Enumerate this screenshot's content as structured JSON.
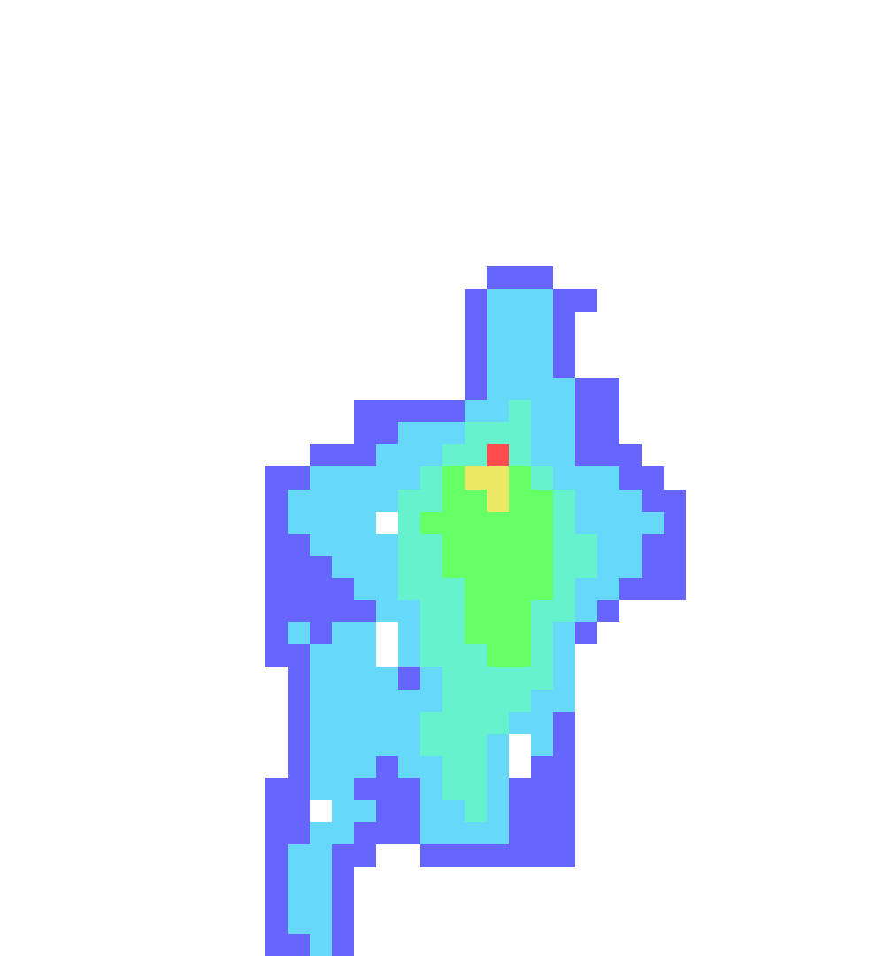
{
  "chart_data": {
    "type": "heatmap",
    "tick_labels": false,
    "levels": [
      1,
      2,
      3,
      4,
      5,
      6
    ],
    "colors": [
      "#6666ff",
      "#66d9fa",
      "#66f2cc",
      "#66ff66",
      "#ece866",
      "#ff4d4d"
    ],
    "cells": [
      [
        0,
        0,
        0,
        0,
        0,
        0,
        0,
        0,
        0,
        0,
        0,
        0,
        0,
        0,
        0,
        0,
        0,
        0,
        0,
        0,
        0,
        0,
        0,
        0,
        0,
        0,
        0,
        0,
        0,
        0,
        0,
        0,
        0,
        0,
        0,
        0,
        0,
        0,
        0,
        0
      ],
      [
        0,
        0,
        0,
        0,
        0,
        0,
        0,
        0,
        0,
        0,
        0,
        0,
        0,
        0,
        0,
        0,
        0,
        0,
        0,
        0,
        0,
        0,
        0,
        0,
        0,
        0,
        0,
        0,
        0,
        0,
        0,
        0,
        0,
        0,
        0,
        0,
        0,
        0,
        0,
        0
      ],
      [
        0,
        0,
        0,
        0,
        0,
        0,
        0,
        0,
        0,
        0,
        0,
        0,
        0,
        0,
        0,
        0,
        0,
        0,
        0,
        0,
        0,
        0,
        0,
        0,
        0,
        0,
        0,
        0,
        0,
        0,
        0,
        0,
        0,
        0,
        0,
        0,
        0,
        0,
        0,
        0
      ],
      [
        0,
        0,
        0,
        0,
        0,
        0,
        0,
        0,
        0,
        0,
        0,
        0,
        0,
        0,
        0,
        0,
        0,
        0,
        0,
        0,
        0,
        0,
        0,
        0,
        0,
        0,
        0,
        0,
        0,
        0,
        0,
        0,
        0,
        0,
        0,
        0,
        0,
        0,
        0,
        0
      ],
      [
        0,
        0,
        0,
        0,
        0,
        0,
        0,
        0,
        0,
        0,
        0,
        0,
        0,
        0,
        0,
        0,
        0,
        0,
        0,
        0,
        0,
        0,
        0,
        0,
        0,
        0,
        0,
        0,
        0,
        0,
        0,
        0,
        0,
        0,
        0,
        0,
        0,
        0,
        0,
        0
      ],
      [
        0,
        0,
        0,
        0,
        0,
        0,
        0,
        0,
        0,
        0,
        0,
        0,
        0,
        0,
        0,
        0,
        0,
        0,
        0,
        0,
        0,
        0,
        0,
        0,
        0,
        0,
        0,
        0,
        0,
        0,
        0,
        0,
        0,
        0,
        0,
        0,
        0,
        0,
        0,
        0
      ],
      [
        0,
        0,
        0,
        0,
        0,
        0,
        0,
        0,
        0,
        0,
        0,
        0,
        0,
        0,
        0,
        0,
        0,
        0,
        0,
        0,
        0,
        0,
        0,
        0,
        0,
        0,
        0,
        0,
        0,
        0,
        0,
        0,
        0,
        0,
        0,
        0,
        0,
        0,
        0,
        0
      ],
      [
        0,
        0,
        0,
        0,
        0,
        0,
        0,
        0,
        0,
        0,
        0,
        0,
        0,
        0,
        0,
        0,
        0,
        0,
        0,
        0,
        0,
        0,
        0,
        0,
        0,
        0,
        0,
        0,
        0,
        0,
        0,
        0,
        0,
        0,
        0,
        0,
        0,
        0,
        0,
        0
      ],
      [
        0,
        0,
        0,
        0,
        0,
        0,
        0,
        0,
        0,
        0,
        0,
        0,
        0,
        0,
        0,
        0,
        0,
        0,
        0,
        0,
        0,
        0,
        0,
        0,
        0,
        0,
        0,
        0,
        0,
        0,
        0,
        0,
        0,
        0,
        0,
        0,
        0,
        0,
        0,
        0
      ],
      [
        0,
        0,
        0,
        0,
        0,
        0,
        0,
        0,
        0,
        0,
        0,
        0,
        0,
        0,
        0,
        0,
        0,
        0,
        0,
        0,
        0,
        0,
        0,
        0,
        0,
        0,
        0,
        0,
        0,
        0,
        0,
        0,
        0,
        0,
        0,
        0,
        0,
        0,
        0,
        0
      ],
      [
        0,
        0,
        0,
        0,
        0,
        0,
        0,
        0,
        0,
        0,
        0,
        0,
        0,
        0,
        0,
        0,
        0,
        0,
        0,
        0,
        0,
        0,
        0,
        0,
        0,
        0,
        0,
        0,
        0,
        0,
        0,
        0,
        0,
        0,
        0,
        0,
        0,
        0,
        0,
        0
      ],
      [
        0,
        0,
        0,
        0,
        0,
        0,
        0,
        0,
        0,
        0,
        0,
        0,
        0,
        0,
        0,
        0,
        0,
        0,
        0,
        0,
        0,
        0,
        0,
        0,
        0,
        0,
        0,
        0,
        0,
        0,
        0,
        0,
        0,
        0,
        0,
        0,
        0,
        0,
        0,
        0
      ],
      [
        0,
        0,
        0,
        0,
        0,
        0,
        0,
        0,
        0,
        0,
        0,
        0,
        0,
        0,
        0,
        0,
        0,
        0,
        0,
        0,
        0,
        0,
        1,
        1,
        1,
        0,
        0,
        0,
        0,
        0,
        0,
        0,
        0,
        0,
        0,
        0,
        0,
        0,
        0,
        0
      ],
      [
        0,
        0,
        0,
        0,
        0,
        0,
        0,
        0,
        0,
        0,
        0,
        0,
        0,
        0,
        0,
        0,
        0,
        0,
        0,
        0,
        0,
        1,
        2,
        2,
        2,
        1,
        1,
        0,
        0,
        0,
        0,
        0,
        0,
        0,
        0,
        0,
        0,
        0,
        0,
        0
      ],
      [
        0,
        0,
        0,
        0,
        0,
        0,
        0,
        0,
        0,
        0,
        0,
        0,
        0,
        0,
        0,
        0,
        0,
        0,
        0,
        0,
        0,
        1,
        2,
        2,
        2,
        1,
        0,
        0,
        0,
        0,
        0,
        0,
        0,
        0,
        0,
        0,
        0,
        0,
        0,
        0
      ],
      [
        0,
        0,
        0,
        0,
        0,
        0,
        0,
        0,
        0,
        0,
        0,
        0,
        0,
        0,
        0,
        0,
        0,
        0,
        0,
        0,
        0,
        1,
        2,
        2,
        2,
        1,
        0,
        0,
        0,
        0,
        0,
        0,
        0,
        0,
        0,
        0,
        0,
        0,
        0,
        0
      ],
      [
        0,
        0,
        0,
        0,
        0,
        0,
        0,
        0,
        0,
        0,
        0,
        0,
        0,
        0,
        0,
        0,
        0,
        0,
        0,
        0,
        0,
        1,
        2,
        2,
        2,
        1,
        0,
        0,
        0,
        0,
        0,
        0,
        0,
        0,
        0,
        0,
        0,
        0,
        0,
        0
      ],
      [
        0,
        0,
        0,
        0,
        0,
        0,
        0,
        0,
        0,
        0,
        0,
        0,
        0,
        0,
        0,
        0,
        0,
        0,
        0,
        0,
        0,
        1,
        2,
        2,
        2,
        2,
        1,
        1,
        0,
        0,
        0,
        0,
        0,
        0,
        0,
        0,
        0,
        0,
        0,
        0
      ],
      [
        0,
        0,
        0,
        0,
        0,
        0,
        0,
        0,
        0,
        0,
        0,
        0,
        0,
        0,
        0,
        0,
        1,
        1,
        1,
        1,
        1,
        2,
        2,
        3,
        2,
        2,
        1,
        1,
        0,
        0,
        0,
        0,
        0,
        0,
        0,
        0,
        0,
        0,
        0,
        0
      ],
      [
        0,
        0,
        0,
        0,
        0,
        0,
        0,
        0,
        0,
        0,
        0,
        0,
        0,
        0,
        0,
        0,
        1,
        1,
        2,
        2,
        2,
        3,
        3,
        3,
        2,
        2,
        1,
        1,
        0,
        0,
        0,
        0,
        0,
        0,
        0,
        0,
        0,
        0,
        0,
        0
      ],
      [
        0,
        0,
        0,
        0,
        0,
        0,
        0,
        0,
        0,
        0,
        0,
        0,
        0,
        0,
        1,
        1,
        1,
        2,
        2,
        2,
        3,
        3,
        6,
        3,
        2,
        2,
        1,
        1,
        1,
        0,
        0,
        0,
        0,
        0,
        0,
        0,
        0,
        0,
        0,
        0
      ],
      [
        0,
        0,
        0,
        0,
        0,
        0,
        0,
        0,
        0,
        0,
        0,
        0,
        1,
        1,
        2,
        2,
        2,
        2,
        2,
        3,
        4,
        5,
        5,
        4,
        3,
        2,
        2,
        2,
        1,
        1,
        0,
        0,
        0,
        0,
        0,
        0,
        0,
        0,
        0,
        0
      ],
      [
        0,
        0,
        0,
        0,
        0,
        0,
        0,
        0,
        0,
        0,
        0,
        0,
        1,
        2,
        2,
        2,
        2,
        2,
        3,
        3,
        4,
        4,
        5,
        4,
        4,
        3,
        2,
        2,
        2,
        1,
        1,
        0,
        0,
        0,
        0,
        0,
        0,
        0,
        0,
        0
      ],
      [
        0,
        0,
        0,
        0,
        0,
        0,
        0,
        0,
        0,
        0,
        0,
        0,
        1,
        2,
        2,
        2,
        2,
        0,
        3,
        4,
        4,
        4,
        4,
        4,
        4,
        3,
        2,
        2,
        2,
        2,
        1,
        0,
        0,
        0,
        0,
        0,
        0,
        0,
        0,
        0
      ],
      [
        0,
        0,
        0,
        0,
        0,
        0,
        0,
        0,
        0,
        0,
        0,
        0,
        1,
        1,
        2,
        2,
        2,
        2,
        3,
        3,
        4,
        4,
        4,
        4,
        4,
        3,
        3,
        2,
        2,
        1,
        1,
        0,
        0,
        0,
        0,
        0,
        0,
        0,
        0,
        0
      ],
      [
        0,
        0,
        0,
        0,
        0,
        0,
        0,
        0,
        0,
        0,
        0,
        0,
        1,
        1,
        1,
        2,
        2,
        2,
        3,
        3,
        4,
        4,
        4,
        4,
        4,
        3,
        3,
        2,
        2,
        1,
        1,
        0,
        0,
        0,
        0,
        0,
        0,
        0,
        0,
        0
      ],
      [
        0,
        0,
        0,
        0,
        0,
        0,
        0,
        0,
        0,
        0,
        0,
        0,
        1,
        1,
        1,
        1,
        2,
        2,
        3,
        3,
        3,
        4,
        4,
        4,
        4,
        3,
        2,
        2,
        1,
        1,
        1,
        0,
        0,
        0,
        0,
        0,
        0,
        0,
        0,
        0
      ],
      [
        0,
        0,
        0,
        0,
        0,
        0,
        0,
        0,
        0,
        0,
        0,
        0,
        1,
        1,
        1,
        1,
        1,
        2,
        2,
        3,
        3,
        4,
        4,
        4,
        3,
        3,
        2,
        1,
        0,
        0,
        0,
        0,
        0,
        0,
        0,
        0,
        0,
        0,
        0,
        0
      ],
      [
        0,
        0,
        0,
        0,
        0,
        0,
        0,
        0,
        0,
        0,
        0,
        0,
        1,
        2,
        1,
        2,
        2,
        0,
        2,
        3,
        3,
        4,
        4,
        4,
        3,
        2,
        1,
        0,
        0,
        0,
        0,
        0,
        0,
        0,
        0,
        0,
        0,
        0,
        0,
        0
      ],
      [
        0,
        0,
        0,
        0,
        0,
        0,
        0,
        0,
        0,
        0,
        0,
        0,
        1,
        1,
        2,
        2,
        2,
        0,
        2,
        3,
        3,
        3,
        4,
        4,
        3,
        2,
        0,
        0,
        0,
        0,
        0,
        0,
        0,
        0,
        0,
        0,
        0,
        0,
        0,
        0
      ],
      [
        0,
        0,
        0,
        0,
        0,
        0,
        0,
        0,
        0,
        0,
        0,
        0,
        0,
        1,
        2,
        2,
        2,
        2,
        1,
        2,
        3,
        3,
        3,
        3,
        3,
        2,
        0,
        0,
        0,
        0,
        0,
        0,
        0,
        0,
        0,
        0,
        0,
        0,
        0,
        0
      ],
      [
        0,
        0,
        0,
        0,
        0,
        0,
        0,
        0,
        0,
        0,
        0,
        0,
        0,
        1,
        2,
        2,
        2,
        2,
        2,
        2,
        3,
        3,
        3,
        3,
        2,
        2,
        0,
        0,
        0,
        0,
        0,
        0,
        0,
        0,
        0,
        0,
        0,
        0,
        0,
        0
      ],
      [
        0,
        0,
        0,
        0,
        0,
        0,
        0,
        0,
        0,
        0,
        0,
        0,
        0,
        1,
        2,
        2,
        2,
        2,
        2,
        3,
        3,
        3,
        3,
        2,
        2,
        1,
        0,
        0,
        0,
        0,
        0,
        0,
        0,
        0,
        0,
        0,
        0,
        0,
        0,
        0
      ],
      [
        0,
        0,
        0,
        0,
        0,
        0,
        0,
        0,
        0,
        0,
        0,
        0,
        0,
        1,
        2,
        2,
        2,
        2,
        2,
        3,
        3,
        3,
        2,
        0,
        2,
        1,
        0,
        0,
        0,
        0,
        0,
        0,
        0,
        0,
        0,
        0,
        0,
        0,
        0,
        0
      ],
      [
        0,
        0,
        0,
        0,
        0,
        0,
        0,
        0,
        0,
        0,
        0,
        0,
        0,
        1,
        2,
        2,
        2,
        1,
        2,
        2,
        3,
        3,
        2,
        0,
        1,
        1,
        0,
        0,
        0,
        0,
        0,
        0,
        0,
        0,
        0,
        0,
        0,
        0,
        0,
        0
      ],
      [
        0,
        0,
        0,
        0,
        0,
        0,
        0,
        0,
        0,
        0,
        0,
        0,
        1,
        1,
        2,
        2,
        1,
        1,
        1,
        2,
        3,
        3,
        2,
        1,
        1,
        1,
        0,
        0,
        0,
        0,
        0,
        0,
        0,
        0,
        0,
        0,
        0,
        0,
        0,
        0
      ],
      [
        0,
        0,
        0,
        0,
        0,
        0,
        0,
        0,
        0,
        0,
        0,
        0,
        1,
        1,
        0,
        2,
        2,
        1,
        1,
        2,
        2,
        3,
        2,
        1,
        1,
        1,
        0,
        0,
        0,
        0,
        0,
        0,
        0,
        0,
        0,
        0,
        0,
        0,
        0,
        0
      ],
      [
        0,
        0,
        0,
        0,
        0,
        0,
        0,
        0,
        0,
        0,
        0,
        0,
        1,
        1,
        2,
        2,
        1,
        1,
        1,
        2,
        2,
        2,
        2,
        1,
        1,
        1,
        0,
        0,
        0,
        0,
        0,
        0,
        0,
        0,
        0,
        0,
        0,
        0,
        0,
        0
      ],
      [
        0,
        0,
        0,
        0,
        0,
        0,
        0,
        0,
        0,
        0,
        0,
        0,
        1,
        2,
        2,
        1,
        1,
        0,
        0,
        1,
        1,
        1,
        1,
        1,
        1,
        1,
        0,
        0,
        0,
        0,
        0,
        0,
        0,
        0,
        0,
        0,
        0,
        0,
        0,
        0
      ],
      [
        0,
        0,
        0,
        0,
        0,
        0,
        0,
        0,
        0,
        0,
        0,
        0,
        1,
        2,
        2,
        1,
        0,
        0,
        0,
        0,
        0,
        0,
        0,
        0,
        0,
        0,
        0,
        0,
        0,
        0,
        0,
        0,
        0,
        0,
        0,
        0,
        0,
        0,
        0,
        0
      ],
      [
        0,
        0,
        0,
        0,
        0,
        0,
        0,
        0,
        0,
        0,
        0,
        0,
        1,
        2,
        2,
        1,
        0,
        0,
        0,
        0,
        0,
        0,
        0,
        0,
        0,
        0,
        0,
        0,
        0,
        0,
        0,
        0,
        0,
        0,
        0,
        0,
        0,
        0,
        0,
        0
      ],
      [
        0,
        0,
        0,
        0,
        0,
        0,
        0,
        0,
        0,
        0,
        0,
        0,
        1,
        2,
        2,
        1,
        0,
        0,
        0,
        0,
        0,
        0,
        0,
        0,
        0,
        0,
        0,
        0,
        0,
        0,
        0,
        0,
        0,
        0,
        0,
        0,
        0,
        0,
        0,
        0
      ],
      [
        0,
        0,
        0,
        0,
        0,
        0,
        0,
        0,
        0,
        0,
        0,
        0,
        1,
        1,
        2,
        1,
        0,
        0,
        0,
        0,
        0,
        0,
        0,
        0,
        0,
        0,
        0,
        0,
        0,
        0,
        0,
        0,
        0,
        0,
        0,
        0,
        0,
        0,
        0,
        0
      ]
    ]
  }
}
